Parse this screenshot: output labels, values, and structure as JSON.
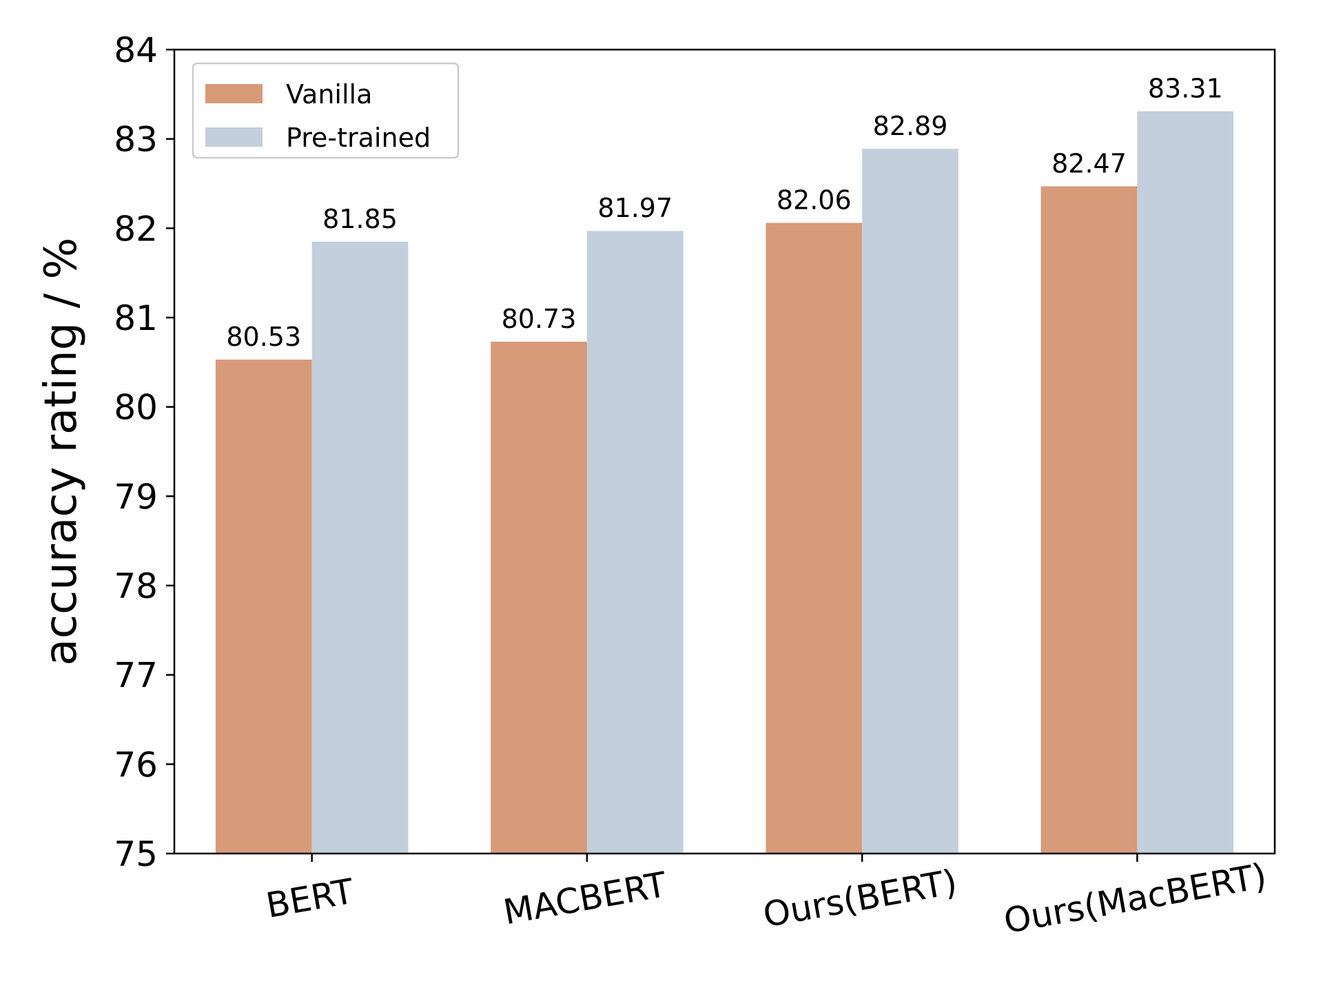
{
  "chart_data": {
    "type": "bar",
    "title": "",
    "xlabel": "",
    "ylabel": "accuracy rating / %",
    "ylim": [
      75,
      84
    ],
    "yticks": [
      75,
      76,
      77,
      78,
      79,
      80,
      81,
      82,
      83,
      84
    ],
    "categories": [
      "BERT",
      "MACBERT",
      "Ours(BERT)",
      "Ours(MacBERT)"
    ],
    "series": [
      {
        "name": "Vanilla",
        "color": "#d79b7a",
        "values": [
          80.53,
          80.73,
          82.06,
          82.47
        ]
      },
      {
        "name": "Pre-trained",
        "color": "#c3cfdc",
        "values": [
          81.85,
          81.97,
          82.89,
          83.31
        ]
      }
    ],
    "data_labels": [
      [
        "80.53",
        "80.73",
        "82.06",
        "82.47"
      ],
      [
        "81.85",
        "81.97",
        "82.89",
        "83.31"
      ]
    ],
    "legend": "upper-left",
    "grid": false,
    "x_tick_rotation_deg": 10
  }
}
